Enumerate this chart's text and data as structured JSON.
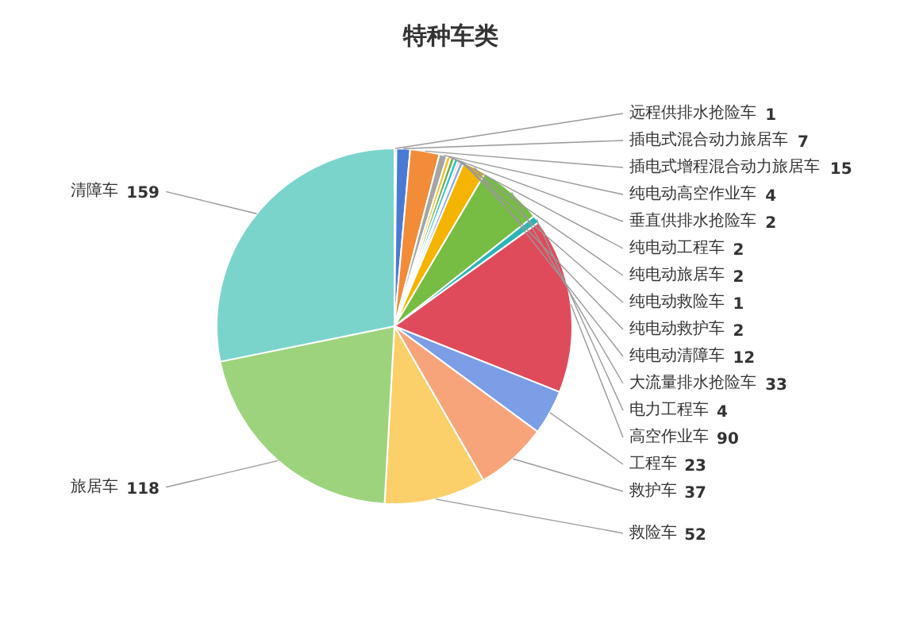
{
  "chart_data": {
    "type": "pie",
    "title": "特种车类",
    "categories": [
      "远程供排水抢险车",
      "插电式混合动力旅居车",
      "插电式增程混合动力旅居车",
      "纯电动高空作业车",
      "垂直供排水抢险车",
      "纯电动工程车",
      "纯电动旅居车",
      "纯电动救险车",
      "纯电动救护车",
      "纯电动清障车",
      "大流量排水抢险车",
      "电力工程车",
      "高空作业车",
      "工程车",
      "救护车",
      "救险车",
      "旅居车",
      "清障车"
    ],
    "values": [
      1,
      7,
      15,
      4,
      2,
      2,
      2,
      1,
      2,
      12,
      33,
      4,
      90,
      23,
      37,
      52,
      118,
      159
    ],
    "colors": [
      "#e8607a",
      "#4a7bd4",
      "#f28c38",
      "#a5a5a5",
      "#f2c12e",
      "#70ad47",
      "#2ec4c4",
      "#e04e5e",
      "#8aa8e0",
      "#f5b400",
      "#77bc43",
      "#2ab5b5",
      "#e04b5c",
      "#7b9ee6",
      "#f8a47a",
      "#fbd06b",
      "#9ed37d",
      "#7ad4cc"
    ],
    "data_labels": true
  }
}
